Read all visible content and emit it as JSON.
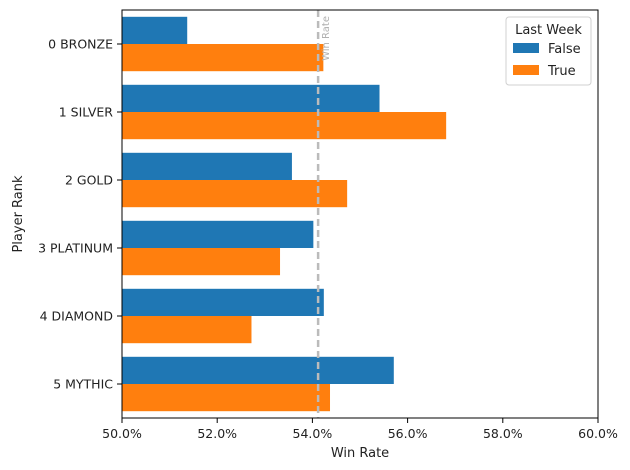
{
  "chart_data": {
    "type": "bar",
    "orientation": "horizontal",
    "categories": [
      "0 BRONZE",
      "1 SILVER",
      "2 GOLD",
      "3 PLATINUM",
      "4 DIAMOND",
      "5 MYTHIC"
    ],
    "series": [
      {
        "name": "False",
        "color": "#1f77b4",
        "values": [
          51.37,
          55.41,
          53.57,
          54.02,
          54.24,
          55.71
        ]
      },
      {
        "name": "True",
        "color": "#ff7f0e",
        "values": [
          54.23,
          56.81,
          54.73,
          53.32,
          52.72,
          54.37
        ]
      }
    ],
    "xlabel": "Win Rate",
    "ylabel": "Player Rank",
    "xlim": [
      50,
      60
    ],
    "xticks": [
      50,
      52,
      54,
      56,
      58,
      60
    ],
    "xtick_labels": [
      "50.0%",
      "52.0%",
      "54.0%",
      "56.0%",
      "58.0%",
      "60.0%"
    ],
    "legend": {
      "title": "Last Week",
      "placement": "top-right"
    },
    "reference_line": {
      "value": 54.12,
      "label": "Win Rate",
      "style": "dashed",
      "color": "#bbbbbb"
    },
    "grid": false
  }
}
